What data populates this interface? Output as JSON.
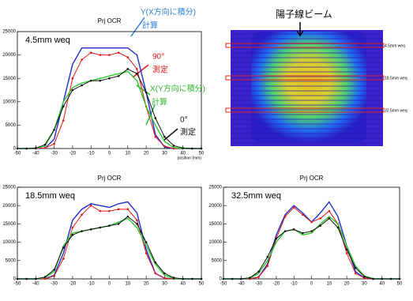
{
  "chart_data": [
    {
      "type": "line",
      "title": "Prj OCR",
      "label": "4.5mm weq",
      "xlabel": "position (mm)",
      "x": [
        -50,
        -45,
        -40,
        -35,
        -30,
        -25,
        -20,
        -15,
        -10,
        -5,
        0,
        5,
        10,
        15,
        20,
        25,
        30,
        35,
        40,
        45,
        50
      ],
      "xlim": [
        -50,
        50
      ],
      "ylim": [
        0,
        25000
      ],
      "xticks": [
        -50,
        -40,
        -30,
        -20,
        -10,
        0,
        10,
        20,
        30,
        40,
        50
      ],
      "yticks": [
        0,
        5000,
        10000,
        15000,
        20000,
        25000
      ],
      "series": [
        {
          "color": "#1f2fd0",
          "marker": false,
          "values": [
            0,
            0,
            0,
            50,
            2000,
            10000,
            18000,
            21500,
            21500,
            21500,
            21500,
            21500,
            21500,
            20000,
            12000,
            3000,
            300,
            0,
            0,
            0,
            0
          ]
        },
        {
          "color": "#e01818",
          "marker": true,
          "values": [
            0,
            0,
            0,
            100,
            1000,
            6000,
            15000,
            19000,
            20500,
            20000,
            20000,
            20500,
            19500,
            17000,
            9000,
            2500,
            500,
            0,
            0,
            0,
            0
          ]
        },
        {
          "color": "#2ec82e",
          "marker": false,
          "values": [
            0,
            0,
            50,
            500,
            4000,
            10000,
            13000,
            14000,
            14500,
            15000,
            15500,
            16000,
            16500,
            14500,
            9000,
            5000,
            1500,
            200,
            0,
            0,
            0
          ]
        },
        {
          "color": "#111111",
          "marker": true,
          "values": [
            0,
            0,
            100,
            800,
            4000,
            9000,
            12500,
            13500,
            14500,
            14500,
            15000,
            15500,
            17000,
            16000,
            12000,
            6500,
            2500,
            600,
            100,
            0,
            0
          ]
        }
      ],
      "annotations": [
        {
          "text": "Y(X方向に積分)",
          "color": "#2a7fd0"
        },
        {
          "text": "計算",
          "color": "#2a7fd0"
        },
        {
          "text": "90°",
          "color": "#e01818"
        },
        {
          "text": "測定",
          "color": "#e01818"
        },
        {
          "text": "X(Y方向に積分)",
          "color": "#2eb82e"
        },
        {
          "text": "計算",
          "color": "#2eb82e"
        },
        {
          "text": "0°",
          "color": "#111111"
        },
        {
          "text": "測定",
          "color": "#111111"
        }
      ]
    },
    {
      "type": "line",
      "title": "Prj OCR",
      "label": "18.5mm weq",
      "x": [
        -50,
        -45,
        -40,
        -35,
        -30,
        -25,
        -20,
        -15,
        -10,
        -5,
        0,
        5,
        10,
        15,
        20,
        25,
        30,
        35,
        40,
        45,
        50
      ],
      "xlim": [
        -50,
        50
      ],
      "ylim": [
        0,
        25000
      ],
      "xticks": [
        -50,
        -40,
        -30,
        -20,
        -10,
        0,
        10,
        20,
        30,
        40,
        50
      ],
      "yticks": [
        0,
        5000,
        10000,
        15000,
        20000,
        25000
      ],
      "series": [
        {
          "color": "#1f2fd0",
          "marker": false,
          "values": [
            0,
            0,
            0,
            0,
            1000,
            7000,
            16000,
            19000,
            20500,
            20000,
            19500,
            20500,
            21000,
            18000,
            8000,
            1500,
            200,
            0,
            0,
            0,
            0
          ]
        },
        {
          "color": "#e01818",
          "marker": true,
          "values": [
            0,
            0,
            0,
            0,
            800,
            5500,
            14000,
            17500,
            20000,
            18500,
            18500,
            19000,
            19000,
            16000,
            7000,
            1500,
            200,
            0,
            0,
            0,
            0
          ]
        },
        {
          "color": "#2ec82e",
          "marker": false,
          "values": [
            0,
            0,
            0,
            300,
            2000,
            9000,
            12500,
            13000,
            13500,
            14000,
            14500,
            15500,
            16500,
            14000,
            9000,
            4000,
            1000,
            100,
            0,
            0,
            0
          ]
        },
        {
          "color": "#111111",
          "marker": true,
          "values": [
            0,
            0,
            0,
            500,
            2500,
            8500,
            12000,
            13000,
            13500,
            14000,
            14500,
            15000,
            17000,
            15000,
            10000,
            4500,
            1500,
            300,
            0,
            0,
            0
          ]
        }
      ]
    },
    {
      "type": "line",
      "title": "Prj OCR",
      "label": "32.5mm weq",
      "x": [
        -50,
        -45,
        -40,
        -35,
        -30,
        -25,
        -20,
        -15,
        -10,
        -5,
        0,
        5,
        10,
        15,
        20,
        25,
        30,
        35,
        40,
        45,
        50
      ],
      "xlim": [
        -50,
        50
      ],
      "ylim": [
        0,
        25000
      ],
      "xticks": [
        -50,
        -40,
        -30,
        -20,
        -10,
        0,
        10,
        20,
        30,
        40,
        50
      ],
      "yticks": [
        0,
        5000,
        10000,
        15000,
        20000,
        25000
      ],
      "series": [
        {
          "color": "#1f2fd0",
          "marker": false,
          "values": [
            0,
            0,
            0,
            0,
            500,
            4000,
            12000,
            17500,
            20000,
            18000,
            15500,
            18000,
            21000,
            17000,
            9000,
            2000,
            200,
            0,
            0,
            0,
            0
          ]
        },
        {
          "color": "#e01818",
          "marker": true,
          "values": [
            0,
            0,
            0,
            0,
            500,
            3500,
            11000,
            17000,
            19500,
            17500,
            15500,
            16500,
            18500,
            15000,
            7000,
            1500,
            200,
            0,
            0,
            0,
            0
          ]
        },
        {
          "color": "#2ec82e",
          "marker": false,
          "values": [
            0,
            0,
            0,
            200,
            1500,
            5000,
            10000,
            13000,
            13500,
            12000,
            12500,
            15000,
            17000,
            15000,
            9000,
            3500,
            800,
            100,
            0,
            0,
            0
          ]
        },
        {
          "color": "#111111",
          "marker": true,
          "values": [
            0,
            0,
            0,
            300,
            2000,
            6000,
            11000,
            13000,
            13500,
            12500,
            13000,
            14500,
            16500,
            14000,
            8000,
            3000,
            600,
            0,
            0,
            0,
            0
          ]
        }
      ]
    }
  ],
  "image": {
    "title": "陽子線ビーム",
    "labels": [
      "4.5mm weq",
      "18.5mm weq",
      "32.5mm weq"
    ]
  }
}
